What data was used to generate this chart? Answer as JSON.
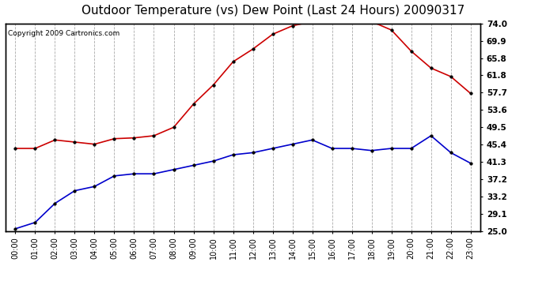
{
  "title": "Outdoor Temperature (vs) Dew Point (Last 24 Hours) 20090317",
  "copyright": "Copyright 2009 Cartronics.com",
  "x_labels": [
    "00:00",
    "01:00",
    "02:00",
    "03:00",
    "04:00",
    "05:00",
    "06:00",
    "07:00",
    "08:00",
    "09:00",
    "10:00",
    "11:00",
    "12:00",
    "13:00",
    "14:00",
    "15:00",
    "16:00",
    "17:00",
    "18:00",
    "19:00",
    "20:00",
    "21:00",
    "22:00",
    "23:00"
  ],
  "temp_red": [
    44.5,
    44.5,
    46.5,
    46.0,
    45.5,
    46.8,
    47.0,
    47.5,
    49.5,
    55.0,
    59.5,
    65.0,
    68.0,
    71.5,
    73.5,
    74.5,
    75.5,
    75.8,
    74.5,
    72.5,
    67.5,
    63.5,
    61.5,
    57.5
  ],
  "dew_blue": [
    25.5,
    27.0,
    31.5,
    34.5,
    35.5,
    38.0,
    38.5,
    38.5,
    39.5,
    40.5,
    41.5,
    43.0,
    43.5,
    44.5,
    45.5,
    46.5,
    44.5,
    44.5,
    44.0,
    44.5,
    44.5,
    47.5,
    43.5,
    41.0
  ],
  "y_ticks": [
    25.0,
    29.1,
    33.2,
    37.2,
    41.3,
    45.4,
    49.5,
    53.6,
    57.7,
    61.8,
    65.8,
    69.9,
    74.0
  ],
  "ymin": 25.0,
  "ymax": 74.0,
  "line_color_red": "#cc0000",
  "line_color_blue": "#0000cc",
  "bg_color": "#ffffff",
  "plot_bg_color": "#ffffff",
  "grid_color": "#aaaaaa",
  "title_fontsize": 11,
  "copyright_fontsize": 6.5,
  "tick_fontsize": 7,
  "ytick_fontsize": 7.5
}
